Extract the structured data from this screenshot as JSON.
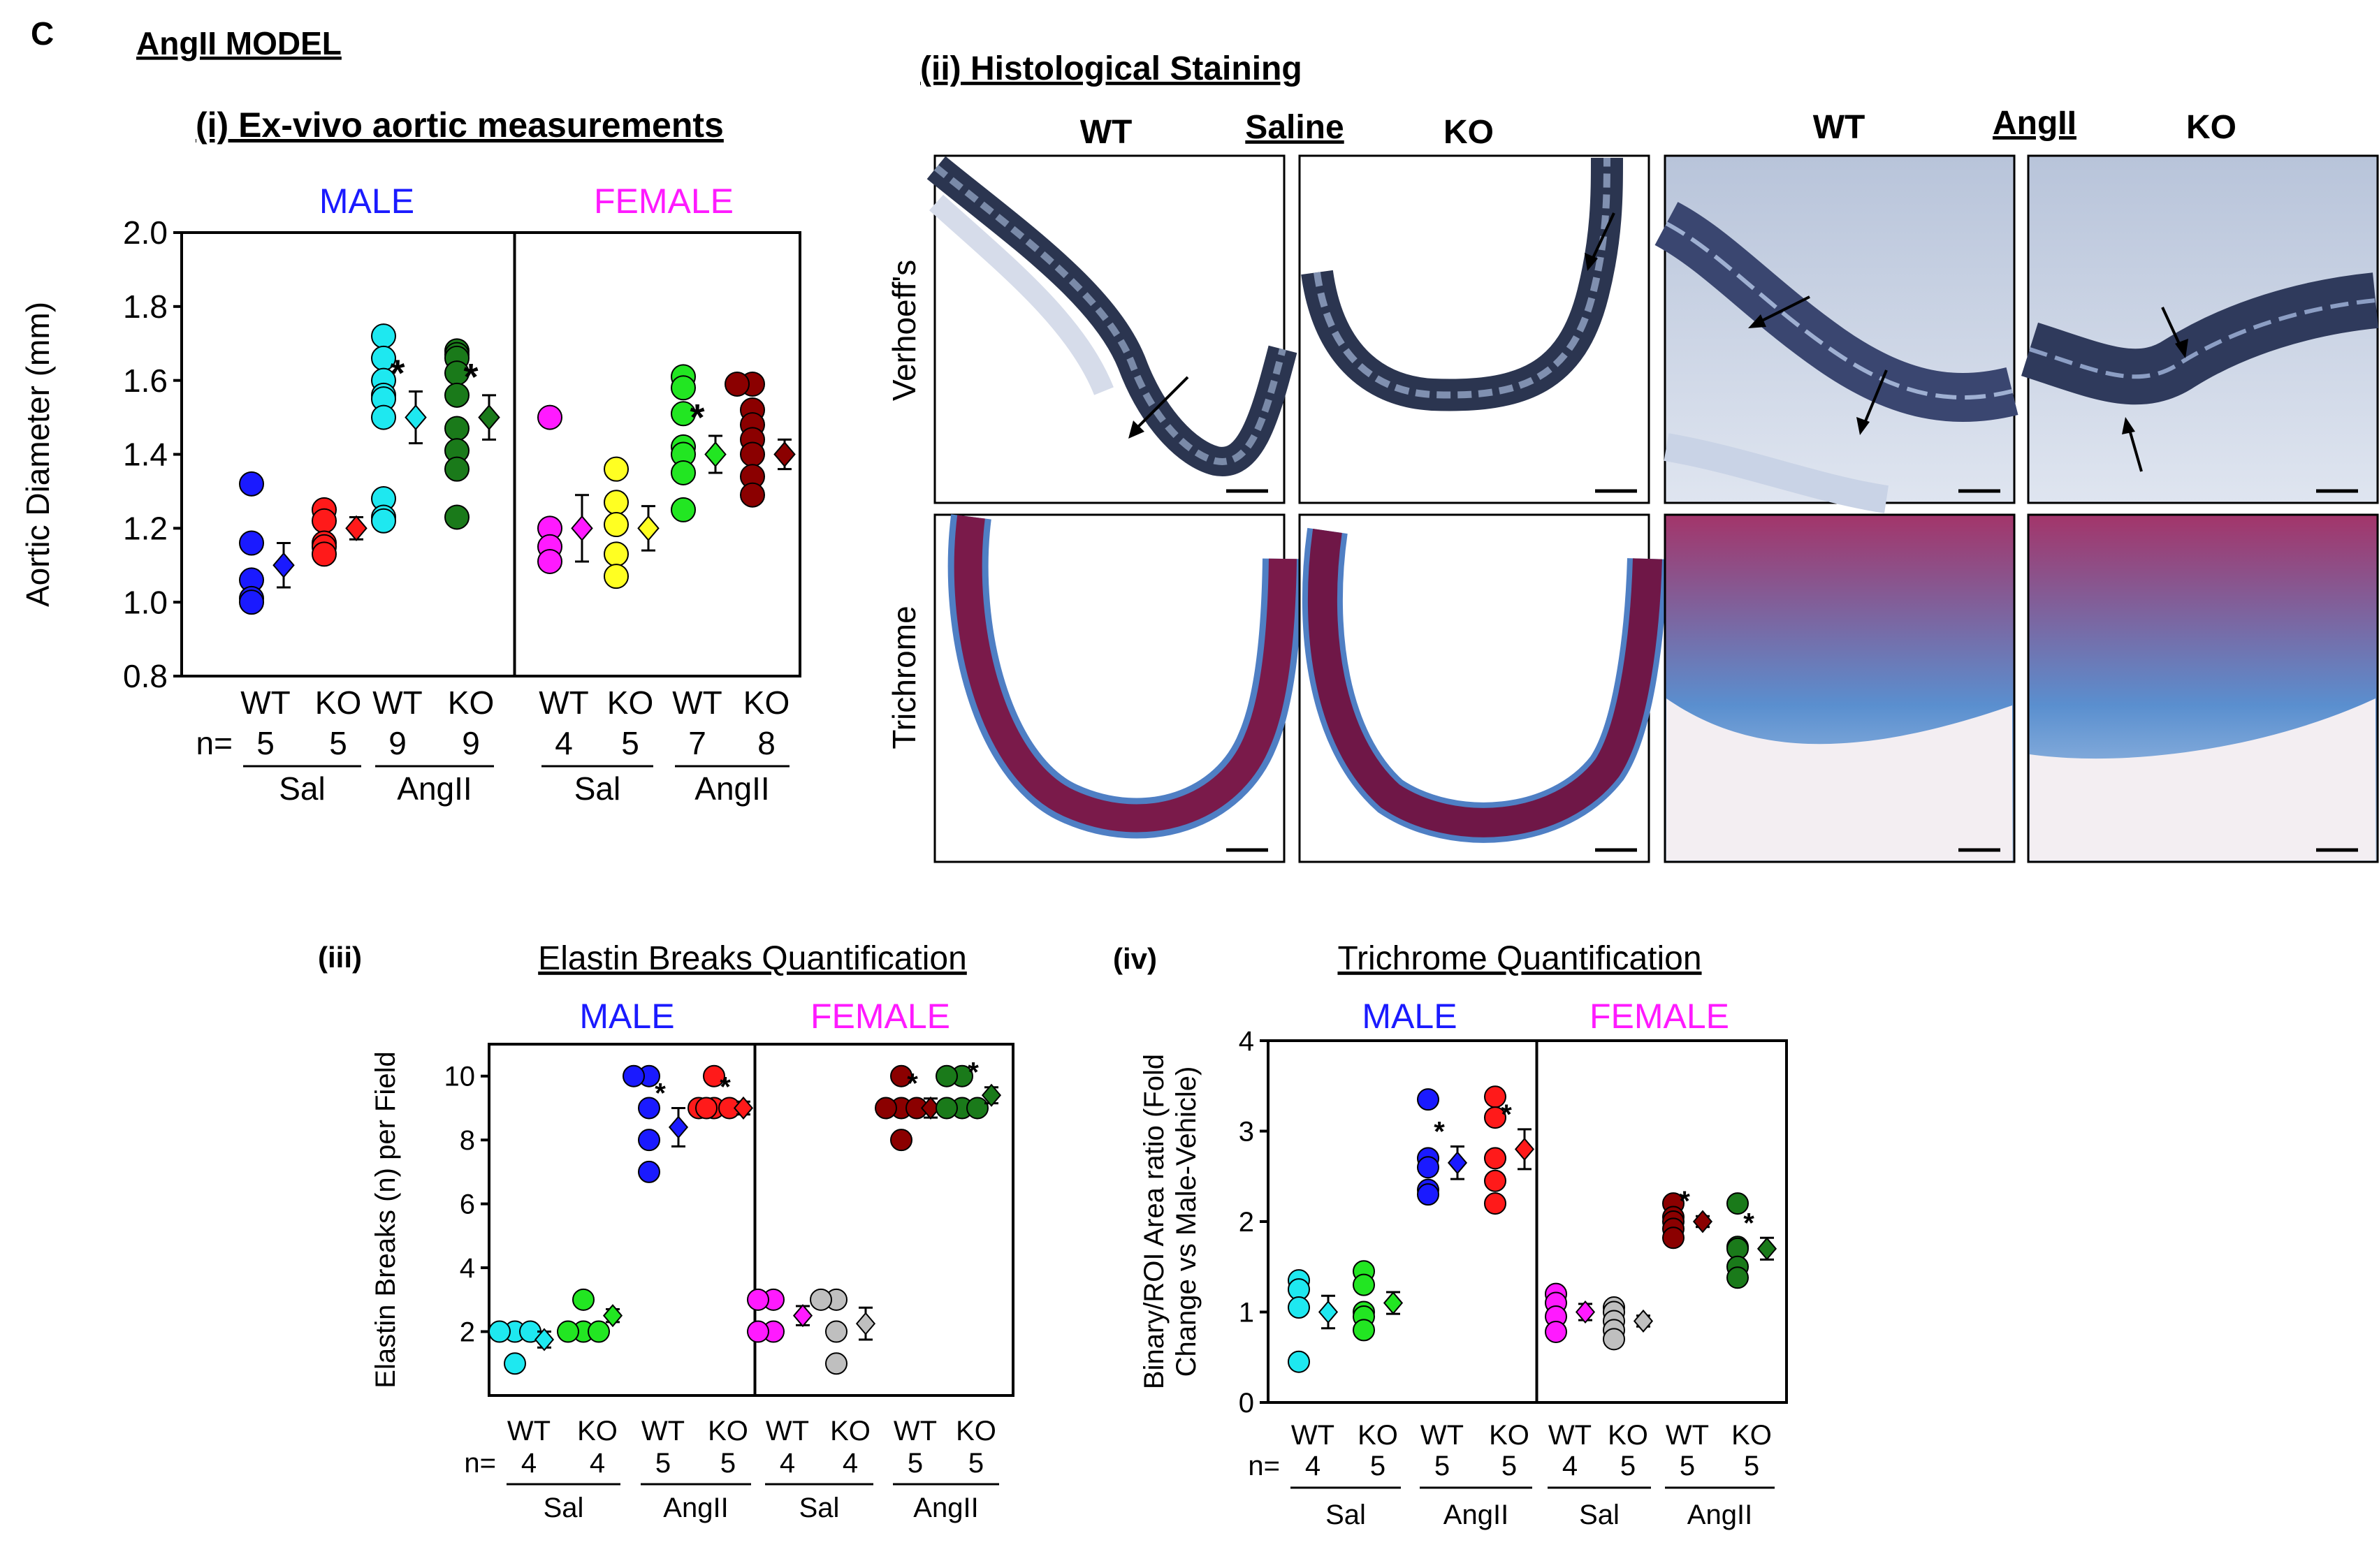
{
  "panel_letter": "C",
  "panel_title": "AngII MODEL",
  "sections": {
    "exvivo": "(i) Ex-vivo aortic measurements",
    "histo": "(ii) Histological Staining",
    "elastin_label": "(iii)",
    "elastin_title": "Elastin Breaks Quantification",
    "trichrome_label": "(iv)",
    "trichrome_title": "Trichrome Quantification"
  },
  "histology": {
    "col_labels": [
      "WT",
      "Saline",
      "KO",
      "WT",
      "AngII",
      "KO"
    ],
    "row_labels": [
      "Verhoeff's",
      "Trichrome"
    ]
  },
  "colors": {
    "blue": "#1a1aff",
    "red": "#ff1a1a",
    "cyan": "#1ee8f0",
    "dkgreen": "#1a7a1a",
    "magenta": "#ff1aff",
    "yellow": "#ffff22",
    "green": "#22e622",
    "dkred": "#8b0000",
    "gray": "#bfbfbf",
    "title_blue": "#1a1aff",
    "title_magenta": "#ff1aff"
  },
  "chart_data": [
    {
      "id": "aortic",
      "type": "scatter",
      "title": "",
      "ylabel": "Aortic Diameter (mm)",
      "ylim": [
        0.8,
        2.0
      ],
      "yticks": [
        "0.8",
        "1.0",
        "1.2",
        "1.4",
        "1.6",
        "1.8",
        "2.0"
      ],
      "sex_labels": [
        "MALE",
        "FEMALE"
      ],
      "n_label": "n=",
      "group_labels": [
        "Sal",
        "AngII",
        "Sal",
        "AngII"
      ],
      "groups": [
        {
          "geno": "WT",
          "n": "5",
          "color": "#1a1aff",
          "points": [
            1.32,
            1.16,
            1.06,
            1.01,
            1.0
          ],
          "mean": 1.1,
          "sem": 0.06,
          "star": false
        },
        {
          "geno": "KO",
          "n": "5",
          "color": "#ff1a1a",
          "points": [
            1.25,
            1.22,
            1.16,
            1.15,
            1.13
          ],
          "mean": 1.2,
          "sem": 0.03,
          "star": false
        },
        {
          "geno": "WT",
          "n": "9",
          "color": "#1ee8f0",
          "points": [
            1.72,
            1.66,
            1.6,
            1.56,
            1.55,
            1.5,
            1.28,
            1.23,
            1.22
          ],
          "mean": 1.5,
          "sem": 0.07,
          "star": true
        },
        {
          "geno": "KO",
          "n": "9",
          "color": "#1a7a1a",
          "points": [
            1.68,
            1.67,
            1.66,
            1.62,
            1.56,
            1.47,
            1.41,
            1.36,
            1.23
          ],
          "mean": 1.5,
          "sem": 0.06,
          "star": true
        },
        {
          "geno": "WT",
          "n": "4",
          "color": "#ff1aff",
          "points": [
            1.5,
            1.2,
            1.15,
            1.11
          ],
          "mean": 1.2,
          "sem": 0.09,
          "star": false
        },
        {
          "geno": "KO",
          "n": "5",
          "color": "#ffff22",
          "points": [
            1.36,
            1.27,
            1.21,
            1.13,
            1.07
          ],
          "mean": 1.2,
          "sem": 0.06,
          "star": false
        },
        {
          "geno": "WT",
          "n": "7",
          "color": "#22e622",
          "points": [
            1.61,
            1.58,
            1.51,
            1.42,
            1.4,
            1.35,
            1.25
          ],
          "mean": 1.4,
          "sem": 0.05,
          "star": true
        },
        {
          "geno": "KO",
          "n": "8",
          "color": "#8b0000",
          "points": [
            1.59,
            1.59,
            1.52,
            1.48,
            1.44,
            1.4,
            1.34,
            1.29
          ],
          "mean": 1.4,
          "sem": 0.04,
          "star": false
        }
      ]
    },
    {
      "id": "elastin",
      "type": "scatter",
      "title": "Elastin Breaks Quantification",
      "ylabel": "Elastin Breaks (n) per Field",
      "ylim": [
        0,
        11
      ],
      "yticks": [
        "2",
        "4",
        "6",
        "8",
        "10"
      ],
      "sex_labels": [
        "MALE",
        "FEMALE"
      ],
      "n_label": "n=",
      "group_labels": [
        "Sal",
        "AngII",
        "Sal",
        "AngII"
      ],
      "groups": [
        {
          "geno": "WT",
          "n": "4",
          "color": "#1ee8f0",
          "points": [
            2,
            2,
            2,
            1
          ],
          "mean": 1.75,
          "sem": 0.25,
          "star": false
        },
        {
          "geno": "KO",
          "n": "4",
          "color": "#22e622",
          "points": [
            3,
            2,
            2,
            2
          ],
          "mean": 2.5,
          "sem": 0.2,
          "star": false
        },
        {
          "geno": "WT",
          "n": "5",
          "color": "#1a1aff",
          "points": [
            10,
            10,
            9,
            8,
            7
          ],
          "mean": 8.4,
          "sem": 0.6,
          "star": true
        },
        {
          "geno": "KO",
          "n": "5",
          "color": "#ff1a1a",
          "points": [
            10,
            9,
            9,
            9,
            9
          ],
          "mean": 9.0,
          "sem": 0.2,
          "star": true
        },
        {
          "geno": "WT",
          "n": "4",
          "color": "#ff1aff",
          "points": [
            3,
            3,
            2,
            2
          ],
          "mean": 2.5,
          "sem": 0.3,
          "star": false
        },
        {
          "geno": "KO",
          "n": "4",
          "color": "#bfbfbf",
          "points": [
            3,
            3,
            2,
            1
          ],
          "mean": 2.25,
          "sem": 0.5,
          "star": false
        },
        {
          "geno": "WT",
          "n": "5",
          "color": "#8b0000",
          "points": [
            10,
            9,
            9,
            9,
            8
          ],
          "mean": 9.0,
          "sem": 0.3,
          "star": true
        },
        {
          "geno": "KO",
          "n": "5",
          "color": "#1a7a1a",
          "points": [
            10,
            10,
            9,
            9,
            9
          ],
          "mean": 9.4,
          "sem": 0.25,
          "star": true
        }
      ]
    },
    {
      "id": "trichrome",
      "type": "scatter",
      "title": "Trichrome Quantification",
      "ylabel": "Binary/ROI Area  ratio (Fold\nChange vs  Male-Vehicle)",
      "ylim": [
        0,
        4
      ],
      "yticks": [
        "0",
        "1",
        "2",
        "3",
        "4"
      ],
      "sex_labels": [
        "MALE",
        "FEMALE"
      ],
      "n_label": "n=",
      "group_labels": [
        "Sal",
        "AngII",
        "Sal",
        "AngII"
      ],
      "groups": [
        {
          "geno": "WT",
          "n": "4",
          "color": "#1ee8f0",
          "points": [
            1.35,
            1.25,
            1.05,
            0.45
          ],
          "mean": 1.0,
          "sem": 0.18,
          "star": false
        },
        {
          "geno": "KO",
          "n": "5",
          "color": "#22e622",
          "points": [
            1.45,
            1.3,
            1.0,
            0.95,
            0.8
          ],
          "mean": 1.1,
          "sem": 0.12,
          "star": false
        },
        {
          "geno": "WT",
          "n": "5",
          "color": "#1a1aff",
          "points": [
            3.35,
            2.7,
            2.6,
            2.35,
            2.3
          ],
          "mean": 2.65,
          "sem": 0.18,
          "star": true
        },
        {
          "geno": "KO",
          "n": "5",
          "color": "#ff1a1a",
          "points": [
            3.38,
            3.15,
            2.7,
            2.45,
            2.2
          ],
          "mean": 2.8,
          "sem": 0.22,
          "star": true
        },
        {
          "geno": "WT",
          "n": "4",
          "color": "#ff1aff",
          "points": [
            1.2,
            1.1,
            0.95,
            0.78
          ],
          "mean": 1.0,
          "sem": 0.09,
          "star": false
        },
        {
          "geno": "KO",
          "n": "5",
          "color": "#bfbfbf",
          "points": [
            1.05,
            1.0,
            0.9,
            0.8,
            0.7
          ],
          "mean": 0.9,
          "sem": 0.06,
          "star": false
        },
        {
          "geno": "WT",
          "n": "5",
          "color": "#8b0000",
          "points": [
            2.2,
            2.05,
            2.0,
            1.92,
            1.82
          ],
          "mean": 2.0,
          "sem": 0.06,
          "star": true
        },
        {
          "geno": "KO",
          "n": "5",
          "color": "#1a7a1a",
          "points": [
            2.2,
            1.72,
            1.7,
            1.5,
            1.38
          ],
          "mean": 1.7,
          "sem": 0.12,
          "star": true
        }
      ]
    }
  ]
}
